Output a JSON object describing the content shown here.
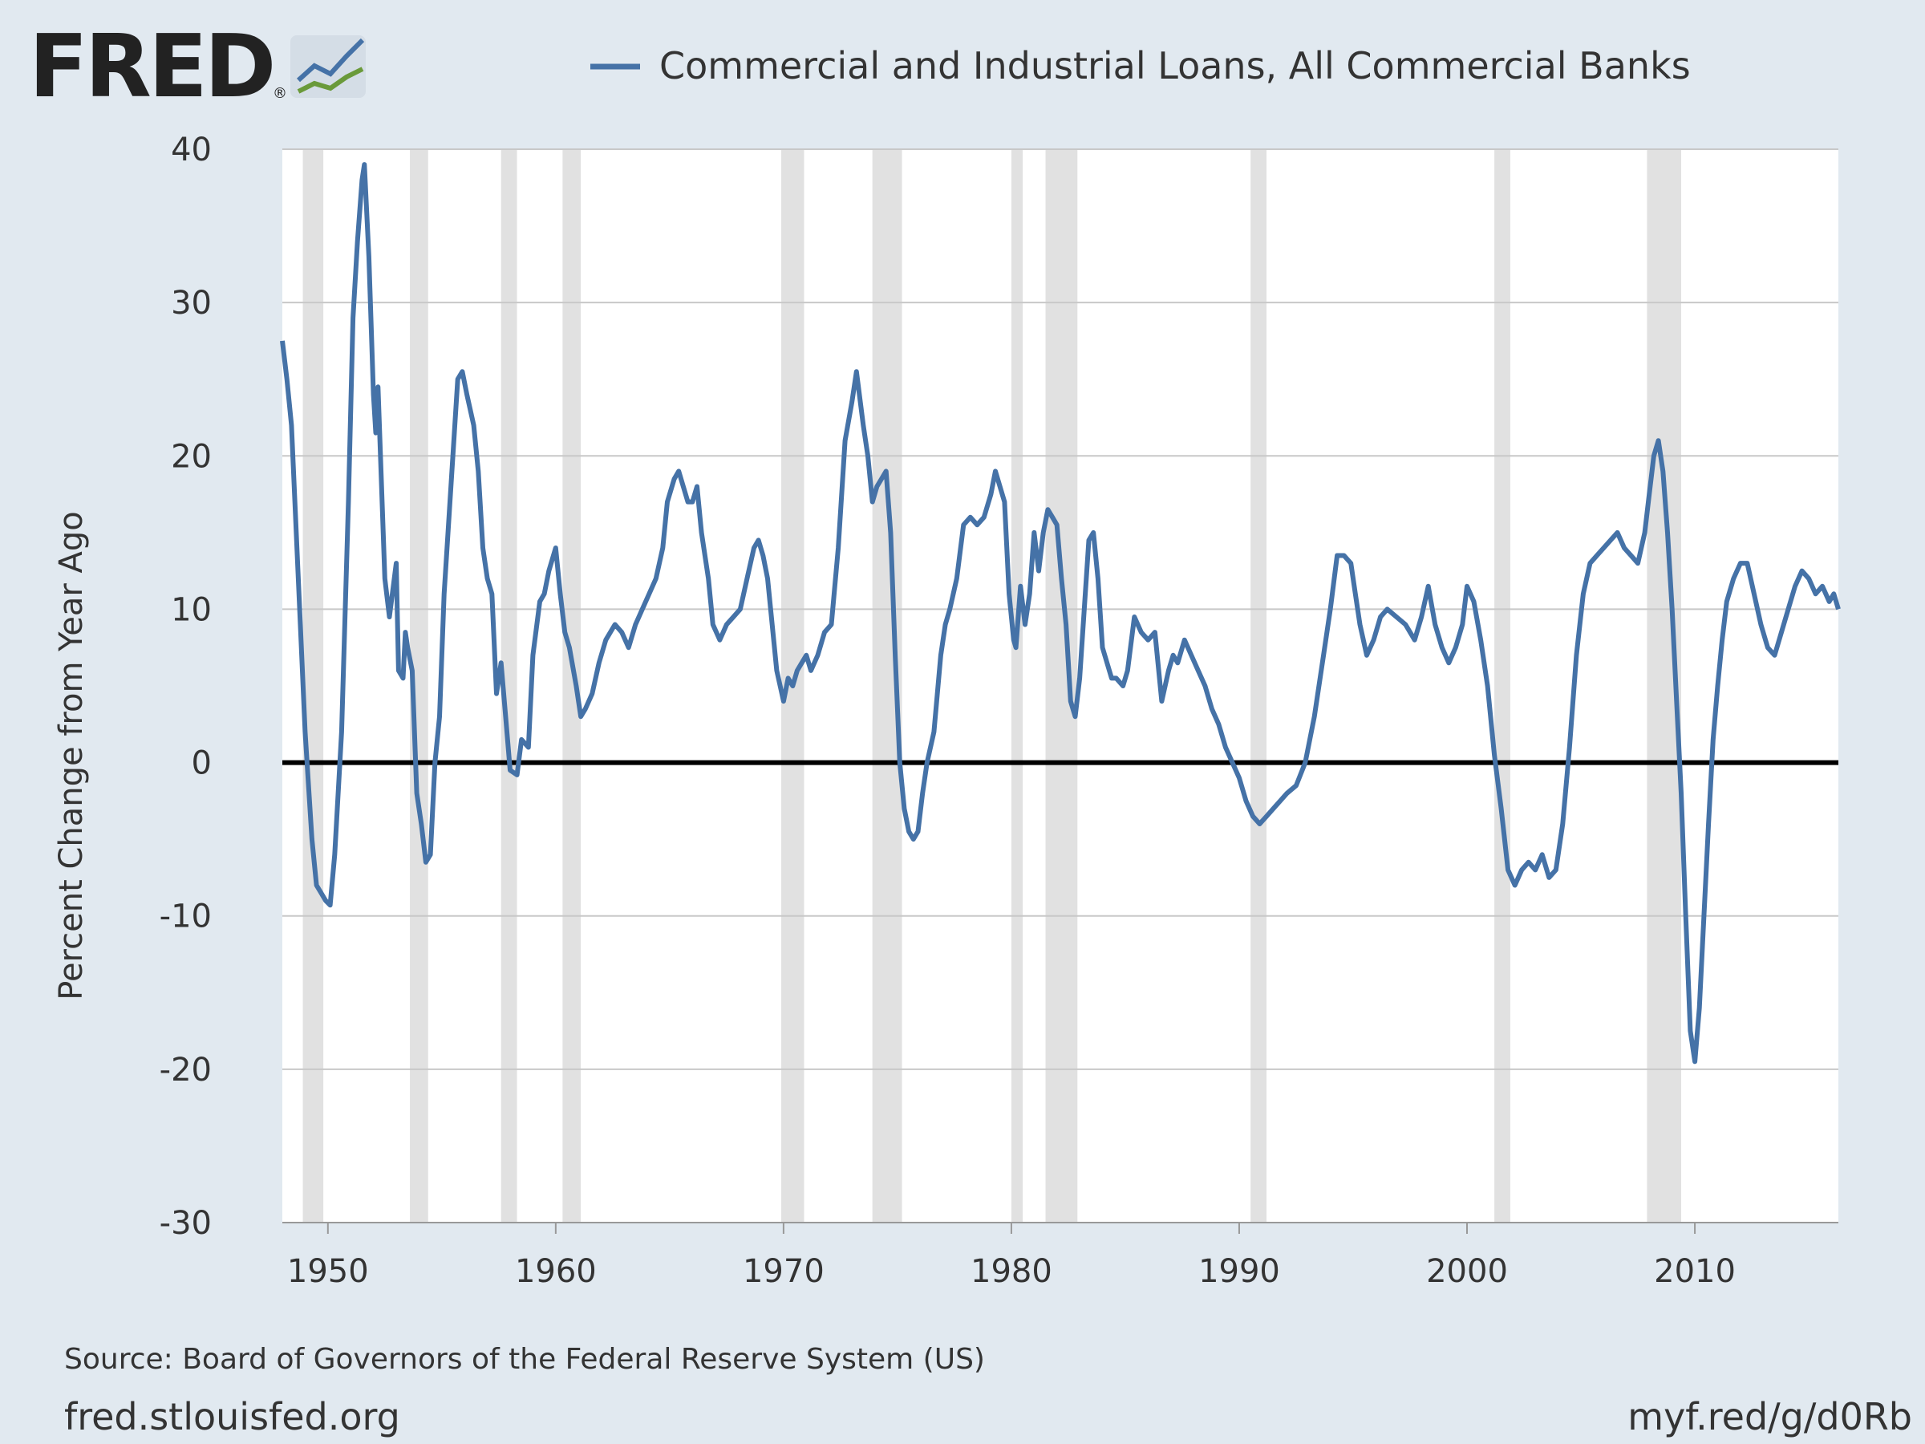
{
  "logo": {
    "text": "FRED",
    "registered": "®"
  },
  "colors": {
    "background": "#e1e9f0",
    "plot_background": "#ffffff",
    "series": "#4572a7",
    "recession": "#e1e1e1",
    "gridline": "#c8c8c8",
    "zero_line": "#000000"
  },
  "footer": {
    "source": "Source: Board of Governors of the Federal Reserve System (US)",
    "site": "fred.stlouisfed.org",
    "short_link": "myf.red/g/d0Rb"
  },
  "chart_data": {
    "type": "line",
    "title": "",
    "legend": {
      "entries": [
        "Commercial and Industrial Loans, All Commercial Banks"
      ],
      "placement": "top"
    },
    "ylabel": "Percent Change from Year Ago",
    "xlabel": "",
    "ylim": [
      -30,
      40
    ],
    "xlim": [
      1948.0,
      2016.3
    ],
    "yticks": [
      40,
      30,
      20,
      10,
      0,
      -10,
      -20,
      -30
    ],
    "xticks": [
      1950,
      1960,
      1970,
      1980,
      1990,
      2000,
      2010
    ],
    "grid": "horizontal",
    "zero_line": true,
    "recessions": [
      [
        1948.9,
        1949.8
      ],
      [
        1953.6,
        1954.4
      ],
      [
        1957.6,
        1958.3
      ],
      [
        1960.3,
        1961.1
      ],
      [
        1969.9,
        1970.9
      ],
      [
        1973.9,
        1975.2
      ],
      [
        1980.0,
        1980.5
      ],
      [
        1981.5,
        1982.9
      ],
      [
        1990.5,
        1991.2
      ],
      [
        2001.2,
        2001.9
      ],
      [
        2007.9,
        2009.4
      ]
    ],
    "series": [
      {
        "name": "Commercial and Industrial Loans, All Commercial Banks",
        "x": [
          1948.0,
          1948.2,
          1948.4,
          1948.7,
          1949.0,
          1949.3,
          1949.5,
          1949.7,
          1949.9,
          1950.1,
          1950.3,
          1950.6,
          1950.9,
          1951.1,
          1951.3,
          1951.5,
          1951.6,
          1951.8,
          1952.0,
          1952.1,
          1952.2,
          1952.5,
          1952.7,
          1953.0,
          1953.1,
          1953.3,
          1953.4,
          1953.5,
          1953.7,
          1953.9,
          1954.1,
          1954.3,
          1954.5,
          1954.7,
          1954.9,
          1955.1,
          1955.4,
          1955.7,
          1955.9,
          1956.1,
          1956.4,
          1956.6,
          1956.8,
          1957.0,
          1957.2,
          1957.4,
          1957.6,
          1957.8,
          1958.0,
          1958.3,
          1958.5,
          1958.8,
          1959.0,
          1959.3,
          1959.5,
          1959.7,
          1960.0,
          1960.2,
          1960.4,
          1960.6,
          1960.9,
          1961.1,
          1961.3,
          1961.6,
          1961.9,
          1962.2,
          1962.6,
          1962.9,
          1963.2,
          1963.5,
          1963.8,
          1964.1,
          1964.4,
          1964.7,
          1964.9,
          1965.2,
          1965.4,
          1965.6,
          1965.8,
          1966.0,
          1966.2,
          1966.4,
          1966.7,
          1966.9,
          1967.2,
          1967.5,
          1967.8,
          1968.1,
          1968.4,
          1968.7,
          1968.9,
          1969.1,
          1969.3,
          1969.5,
          1969.7,
          1970.0,
          1970.2,
          1970.4,
          1970.6,
          1970.8,
          1971.0,
          1971.2,
          1971.5,
          1971.8,
          1972.1,
          1972.4,
          1972.7,
          1973.0,
          1973.2,
          1973.5,
          1973.7,
          1973.9,
          1974.1,
          1974.3,
          1974.5,
          1974.7,
          1974.9,
          1975.1,
          1975.3,
          1975.5,
          1975.7,
          1975.9,
          1976.1,
          1976.3,
          1976.6,
          1976.9,
          1977.1,
          1977.3,
          1977.6,
          1977.9,
          1978.2,
          1978.5,
          1978.8,
          1979.1,
          1979.3,
          1979.5,
          1979.7,
          1979.9,
          1980.1,
          1980.2,
          1980.4,
          1980.6,
          1980.8,
          1981.0,
          1981.2,
          1981.4,
          1981.6,
          1981.8,
          1982.0,
          1982.2,
          1982.4,
          1982.6,
          1982.8,
          1983.0,
          1983.2,
          1983.4,
          1983.6,
          1983.8,
          1984.0,
          1984.2,
          1984.4,
          1984.6,
          1984.9,
          1985.1,
          1985.4,
          1985.7,
          1986.0,
          1986.3,
          1986.6,
          1986.9,
          1987.1,
          1987.3,
          1987.6,
          1987.9,
          1988.2,
          1988.5,
          1988.8,
          1989.1,
          1989.4,
          1989.7,
          1990.0,
          1990.3,
          1990.6,
          1990.9,
          1991.2,
          1991.5,
          1991.8,
          1992.1,
          1992.5,
          1992.9,
          1993.3,
          1993.7,
          1994.0,
          1994.3,
          1994.6,
          1994.9,
          1995.1,
          1995.3,
          1995.6,
          1995.9,
          1996.2,
          1996.5,
          1996.9,
          1997.3,
          1997.7,
          1998.0,
          1998.3,
          1998.6,
          1998.9,
          1999.2,
          1999.5,
          1999.8,
          2000.0,
          2000.3,
          2000.6,
          2000.9,
          2001.2,
          2001.5,
          2001.8,
          2002.1,
          2002.4,
          2002.7,
          2003.0,
          2003.3,
          2003.6,
          2003.9,
          2004.2,
          2004.5,
          2004.8,
          2005.1,
          2005.4,
          2005.7,
          2006.0,
          2006.3,
          2006.6,
          2006.9,
          2007.2,
          2007.5,
          2007.8,
          2008.0,
          2008.2,
          2008.4,
          2008.6,
          2008.8,
          2009.0,
          2009.2,
          2009.4,
          2009.6,
          2009.8,
          2010.0,
          2010.2,
          2010.4,
          2010.6,
          2010.8,
          2011.0,
          2011.2,
          2011.4,
          2011.7,
          2012.0,
          2012.3,
          2012.6,
          2012.9,
          2013.2,
          2013.5,
          2013.8,
          2014.1,
          2014.4,
          2014.7,
          2015.0,
          2015.3,
          2015.6,
          2015.9,
          2016.1,
          2016.3
        ],
        "values": [
          27.5,
          25.0,
          22.0,
          12.0,
          2.0,
          -5.0,
          -8.0,
          -8.5,
          -9.0,
          -9.3,
          -6.0,
          2.0,
          17.0,
          29.0,
          34.0,
          38.0,
          39.0,
          33.0,
          24.0,
          21.5,
          24.5,
          12.0,
          9.5,
          13.0,
          6.0,
          5.5,
          8.5,
          7.5,
          6.0,
          -2.0,
          -4.0,
          -6.5,
          -6.0,
          0.0,
          3.0,
          11.0,
          18.0,
          25.0,
          25.5,
          24.0,
          22.0,
          19.0,
          14.0,
          12.0,
          11.0,
          4.5,
          6.5,
          3.0,
          -0.5,
          -0.8,
          1.5,
          1.0,
          7.0,
          10.5,
          11.0,
          12.5,
          14.0,
          11.0,
          8.5,
          7.5,
          5.0,
          3.0,
          3.5,
          4.5,
          6.5,
          8.0,
          9.0,
          8.5,
          7.5,
          9.0,
          10.0,
          11.0,
          12.0,
          14.0,
          17.0,
          18.5,
          19.0,
          18.0,
          17.0,
          17.0,
          18.0,
          15.0,
          12.0,
          9.0,
          8.0,
          9.0,
          9.5,
          10.0,
          12.0,
          14.0,
          14.5,
          13.5,
          12.0,
          9.0,
          6.0,
          4.0,
          5.5,
          5.0,
          6.0,
          6.5,
          7.0,
          6.0,
          7.0,
          8.5,
          9.0,
          14.0,
          21.0,
          23.5,
          25.5,
          22.0,
          20.0,
          17.0,
          18.0,
          18.5,
          19.0,
          15.0,
          7.0,
          0.0,
          -3.0,
          -4.5,
          -5.0,
          -4.5,
          -2.0,
          0.0,
          2.0,
          7.0,
          9.0,
          10.0,
          12.0,
          15.5,
          16.0,
          15.5,
          16.0,
          17.5,
          19.0,
          18.0,
          17.0,
          11.0,
          8.0,
          7.5,
          11.5,
          9.0,
          11.0,
          15.0,
          12.5,
          15.0,
          16.5,
          16.0,
          15.5,
          12.0,
          9.0,
          4.0,
          3.0,
          5.5,
          10.0,
          14.5,
          15.0,
          12.0,
          7.5,
          6.5,
          5.5,
          5.5,
          5.0,
          6.0,
          9.5,
          8.5,
          8.0,
          8.5,
          4.0,
          6.0,
          7.0,
          6.5,
          8.0,
          7.0,
          6.0,
          5.0,
          3.5,
          2.5,
          1.0,
          0.0,
          -1.0,
          -2.5,
          -3.5,
          -4.0,
          -3.5,
          -3.0,
          -2.5,
          -2.0,
          -1.5,
          0.0,
          3.0,
          7.0,
          10.0,
          13.5,
          13.5,
          13.0,
          11.0,
          9.0,
          7.0,
          8.0,
          9.5,
          10.0,
          9.5,
          9.0,
          8.0,
          9.5,
          11.5,
          9.0,
          7.5,
          6.5,
          7.5,
          9.0,
          11.5,
          10.5,
          8.0,
          5.0,
          0.5,
          -3.0,
          -7.0,
          -8.0,
          -7.0,
          -6.5,
          -7.0,
          -6.0,
          -7.5,
          -7.0,
          -4.0,
          1.0,
          7.0,
          11.0,
          13.0,
          13.5,
          14.0,
          14.5,
          15.0,
          14.0,
          13.5,
          13.0,
          15.0,
          17.5,
          20.0,
          21.0,
          19.0,
          15.0,
          10.0,
          4.0,
          -2.0,
          -10.0,
          -17.5,
          -19.5,
          -16.0,
          -10.0,
          -4.0,
          1.5,
          5.0,
          8.0,
          10.5,
          12.0,
          13.0,
          13.0,
          11.0,
          9.0,
          7.5,
          7.0,
          8.5,
          10.0,
          11.5,
          12.5,
          12.0,
          11.0,
          11.5,
          10.5,
          11.0,
          10.0
        ]
      }
    ]
  }
}
